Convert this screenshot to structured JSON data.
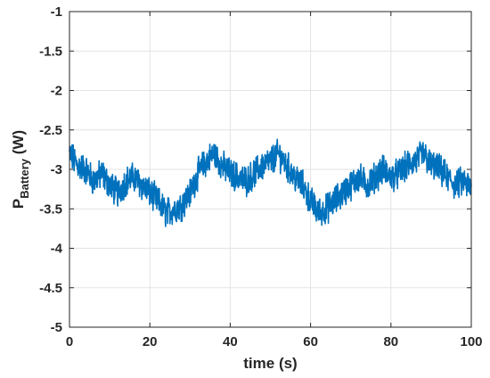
{
  "chart_data": {
    "type": "line",
    "xlabel": "time (s)",
    "ylabel": {
      "main": "P",
      "subscript": "Battery",
      "unit": " (W)"
    },
    "xlim": [
      0,
      100
    ],
    "ylim": [
      -5,
      -1
    ],
    "xticks": [
      "0",
      "20",
      "40",
      "60",
      "80",
      "100"
    ],
    "yticks": [
      "-1",
      "-1.5",
      "-2",
      "-2.5",
      "-3",
      "-3.5",
      "-4",
      "-4.5",
      "-5"
    ],
    "grid": true,
    "line_color": "#0072BD",
    "series": [
      {
        "x": [
          0,
          2,
          4,
          6,
          8,
          10,
          12,
          14,
          16,
          18,
          20,
          22,
          24,
          26,
          28,
          30,
          32,
          34,
          36,
          38,
          40,
          42,
          44,
          46,
          48,
          50,
          52,
          54,
          56,
          58,
          60,
          62,
          64,
          66,
          68,
          70,
          72,
          74,
          76,
          78,
          80,
          82,
          84,
          86,
          88,
          90,
          92,
          94,
          96,
          98,
          100
        ],
        "y": [
          -2.8,
          -2.95,
          -3.0,
          -3.15,
          -3.05,
          -3.2,
          -3.3,
          -3.15,
          -3.1,
          -3.2,
          -3.3,
          -3.4,
          -3.55,
          -3.5,
          -3.45,
          -3.3,
          -3.05,
          -2.9,
          -2.8,
          -2.95,
          -3.05,
          -3.1,
          -3.15,
          -3.05,
          -2.95,
          -2.9,
          -2.8,
          -2.95,
          -3.1,
          -3.2,
          -3.4,
          -3.55,
          -3.5,
          -3.4,
          -3.3,
          -3.2,
          -3.1,
          -3.2,
          -3.1,
          -3.0,
          -3.1,
          -3.05,
          -2.95,
          -2.9,
          -2.8,
          -2.95,
          -3.0,
          -3.1,
          -3.2,
          -3.15,
          -3.25
        ]
      }
    ]
  }
}
